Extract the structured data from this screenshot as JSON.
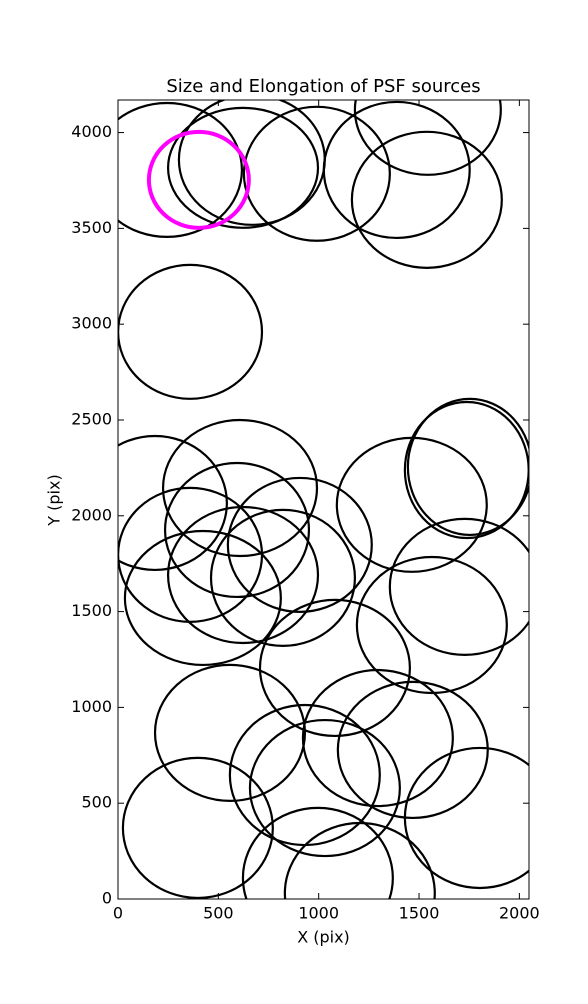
{
  "chart_data": {
    "type": "ellipse",
    "title": "Size and Elongation of PSF sources",
    "x_label": "X (pix)",
    "y_label": "Y (pix)",
    "xlim": [
      0,
      2048
    ],
    "ylim": [
      0,
      4170
    ],
    "xticks": [
      0,
      500,
      1000,
      1500,
      2000
    ],
    "yticks": [
      0,
      500,
      1000,
      1500,
      2000,
      2500,
      3000,
      3500,
      4000
    ],
    "series": [
      {
        "color": "#000000",
        "x": [
          244,
          623,
          667,
          991,
          1389,
          1539,
          1544,
          359,
          184,
          608,
          359,
          593,
          906,
          623,
          423,
          822,
          1464,
          1738,
          1753,
          1728,
          1564,
          1081,
          558,
          1295,
          931,
          1031,
          1469,
          1803,
          398,
          996,
          1205
        ],
        "y": [
          3805,
          3816,
          3858,
          3785,
          3805,
          3649,
          4119,
          2960,
          2067,
          2145,
          1796,
          1926,
          1848,
          1691,
          1571,
          1676,
          2057,
          2239,
          2255,
          1629,
          1430,
          1206,
          867,
          840,
          647,
          579,
          778,
          423,
          371,
          110,
          31
        ],
        "widths": [
          747,
          747,
          727,
          727,
          727,
          747,
          727,
          717,
          717,
          767,
          717,
          717,
          717,
          747,
          777,
          717,
          747,
          617,
          617,
          747,
          747,
          747,
          747,
          747,
          747,
          747,
          747,
          747,
          747,
          747,
          747
        ],
        "heights": [
          699,
          626,
          679,
          699,
          710,
          710,
          679,
          699,
          699,
          710,
          699,
          699,
          699,
          710,
          699,
          710,
          699,
          710,
          710,
          710,
          710,
          710,
          710,
          710,
          731,
          710,
          710,
          731,
          731,
          731,
          731
        ]
      },
      {
        "color": "#ff00ff",
        "x": [
          403
        ],
        "y": [
          3753
        ],
        "widths": [
          498
        ],
        "heights": [
          501
        ]
      }
    ]
  }
}
